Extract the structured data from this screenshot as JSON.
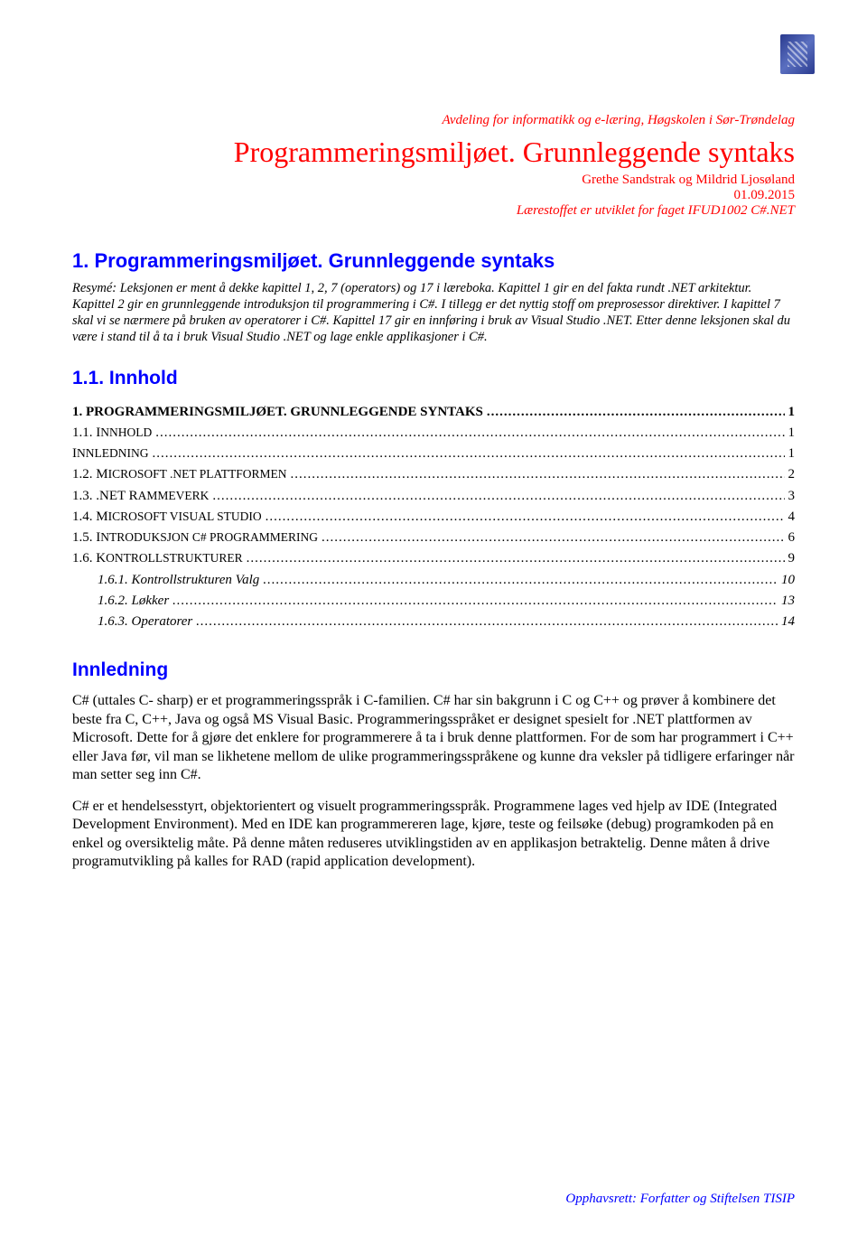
{
  "header": {
    "department": "Avdeling for informatikk og e-læring, Høgskolen i Sør-Trøndelag",
    "title": "Programmeringsmiljøet. Grunnleggende syntaks",
    "authors": "Grethe Sandstrak og Mildrid Ljosøland",
    "date": "01.09.2015",
    "course": "Lærestoffet er utviklet for faget IFUD1002  C#.NET"
  },
  "section1": {
    "number": "1.",
    "title": "Programmeringsmiljøet. Grunnleggende syntaks",
    "resume": "Resymé: Leksjonen er ment å dekke kapittel 1, 2, 7 (operators) og 17 i læreboka. Kapittel 1 gir en del fakta rundt .NET arkitektur. Kapittel 2 gir en grunnleggende introduksjon til programmering i C#. I tillegg er det nyttig stoff om preprosessor direktiver. I kapittel 7 skal vi se nærmere på bruken av operatorer i C#. Kapittel 17 gir en innføring i bruk av Visual Studio .NET. Etter denne leksjonen skal du være i stand til å ta i bruk Visual Studio .NET og lage enkle applikasjoner i C#."
  },
  "toc": {
    "heading": "1.1.   Innhold",
    "rows": [
      {
        "label": "1.    PROGRAMMERINGSMILJØET. GRUNNLEGGENDE SYNTAKS",
        "page": "1",
        "bold": true,
        "level": 0
      },
      {
        "label": "1.1.     I",
        "smallcaps": "NNHOLD",
        "page": "1",
        "level": 1
      },
      {
        "label": "I",
        "smallcaps": "NNLEDNING",
        "page": "1",
        "level": 1
      },
      {
        "label": "1.2.     M",
        "smallcaps": "ICROSOFT .NET PLATTFORMEN",
        "page": "2",
        "level": 1
      },
      {
        "label": "1.3.     .NET R",
        "smallcaps": "AMMEVERK",
        "page": "3",
        "level": 1
      },
      {
        "label": "1.4.     M",
        "smallcaps": "ICROSOFT VISUAL STUDIO",
        "page": "4",
        "level": 1
      },
      {
        "label": "1.5.     I",
        "smallcaps": "NTRODUKSJON C# PROGRAMMERING",
        "page": "6",
        "level": 1
      },
      {
        "label": "1.6.     K",
        "smallcaps": "ONTROLLSTRUKTURER",
        "page": "9",
        "level": 1
      },
      {
        "label": "1.6.1.    Kontrollstrukturen Valg",
        "page": "10",
        "level": 2,
        "italic": true
      },
      {
        "label": "1.6.2.    Løkker",
        "page": "13",
        "level": 2,
        "italic": true
      },
      {
        "label": "1.6.3.    Operatorer",
        "page": "14",
        "level": 2,
        "italic": true
      }
    ]
  },
  "innledning": {
    "heading": "Innledning",
    "p1": "C# (uttales C- sharp) er et programmeringsspråk i C-familien.  C# har sin bakgrunn i C og C++ og prøver å kombinere det beste fra C, C++, Java og også MS Visual Basic. Programmeringsspråket er designet spesielt for .NET plattformen av Microsoft. Dette for å gjøre det enklere for programmerere å ta i bruk denne plattformen.  For de som har programmert i C++ eller Java før, vil man se likhetene mellom de ulike programmeringsspråkene og kunne dra veksler på tidligere erfaringer når man setter seg inn C#.",
    "p2": "C# er et hendelsesstyrt, objektorientert og visuelt programmeringsspråk. Programmene lages ved hjelp av IDE (Integrated Development Environment). Med en IDE kan programmereren lage, kjøre, teste og feilsøke (debug) programkoden på en enkel og oversiktelig måte. På denne måten reduseres utviklingstiden av en applikasjon betraktelig.  Denne måten å drive programutvikling på kalles for RAD (rapid application development)."
  },
  "footer": "Opphavsrett:  Forfatter og Stiftelsen TISIP"
}
